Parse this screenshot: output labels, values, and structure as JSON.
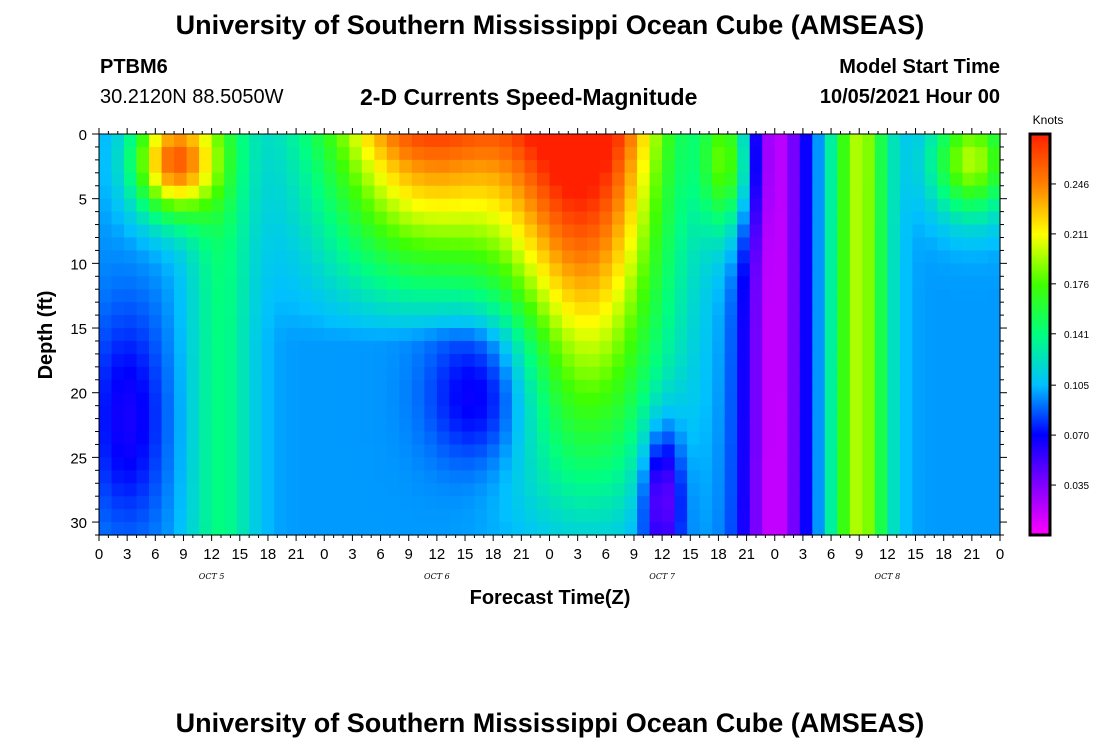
{
  "header": {
    "title": "University of Southern Mississippi Ocean Cube (AMSEAS)",
    "station_id": "PTBM6",
    "station_coords": "30.2120N  88.5050W",
    "subtitle": "2-D Currents Speed-Magnitude",
    "start_label": "Model Start Time",
    "start_value": "10/05/2021 Hour 00"
  },
  "footer": {
    "title": "University of Southern Mississippi Ocean Cube (AMSEAS)"
  },
  "chart_data": {
    "type": "heatmap",
    "title": "2-D Currents Speed-Magnitude",
    "xlabel": "Forecast Time(Z)",
    "ylabel": "Depth (ft)",
    "xlim": [
      0,
      96
    ],
    "ylim": [
      31,
      0
    ],
    "x_tick_labels": [
      "0",
      "3",
      "6",
      "9",
      "12",
      "15",
      "18",
      "21",
      "0",
      "3",
      "6",
      "9",
      "12",
      "15",
      "18",
      "21",
      "0",
      "3",
      "6",
      "9",
      "12",
      "15",
      "18",
      "21",
      "0",
      "3",
      "6",
      "9",
      "12",
      "15",
      "18",
      "21",
      "0"
    ],
    "day_labels": [
      {
        "label": "OCT 5",
        "hour": 12
      },
      {
        "label": "OCT 6",
        "hour": 36
      },
      {
        "label": "OCT 7",
        "hour": 60
      },
      {
        "label": "OCT 8",
        "hour": 84
      }
    ],
    "y_ticks": [
      0,
      5,
      10,
      15,
      20,
      25,
      30
    ],
    "colorbar": {
      "unit": "Knots",
      "min": 0,
      "max": 0.281,
      "tick_labels": [
        "0.246",
        "0.211",
        "0.176",
        "0.141",
        "0.105",
        "0.070",
        "0.035"
      ],
      "tick_values": [
        0.246,
        0.211,
        0.176,
        0.141,
        0.105,
        0.07,
        0.035
      ],
      "colors": [
        "#ff00ff",
        "#8000ff",
        "#0000ff",
        "#00c0ff",
        "#00ff80",
        "#40ff00",
        "#ffff00",
        "#ff8000",
        "#ff2000"
      ]
    },
    "series": []
  }
}
